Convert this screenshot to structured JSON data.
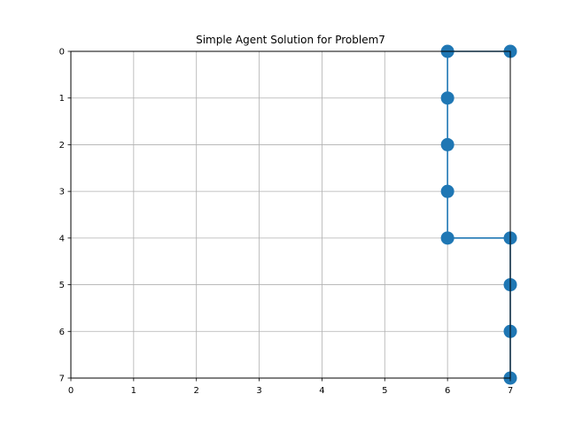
{
  "chart_data": {
    "type": "scatter",
    "title": "Simple Agent Solution for Problem7",
    "xlabel": "",
    "ylabel": "",
    "xlim": [
      0,
      7
    ],
    "ylim": [
      7,
      0
    ],
    "y_inverted": true,
    "grid": true,
    "x_ticks": [
      "0",
      "1",
      "2",
      "3",
      "4",
      "5",
      "6",
      "7"
    ],
    "y_ticks": [
      "0",
      "1",
      "2",
      "3",
      "4",
      "5",
      "6",
      "7"
    ],
    "series": [
      {
        "style": "line-with-markers",
        "color": "#1f77b4",
        "points": [
          {
            "x": 7,
            "y": 0
          },
          {
            "x": 6,
            "y": 0
          },
          {
            "x": 6,
            "y": 1
          },
          {
            "x": 6,
            "y": 2
          },
          {
            "x": 6,
            "y": 3
          },
          {
            "x": 6,
            "y": 4
          },
          {
            "x": 7,
            "y": 4
          },
          {
            "x": 7,
            "y": 5
          },
          {
            "x": 7,
            "y": 6
          },
          {
            "x": 7,
            "y": 7
          }
        ]
      }
    ]
  },
  "colors": {
    "series": "#1f77b4",
    "grid": "#b0b0b0",
    "axis": "#000000",
    "background": "#ffffff"
  }
}
